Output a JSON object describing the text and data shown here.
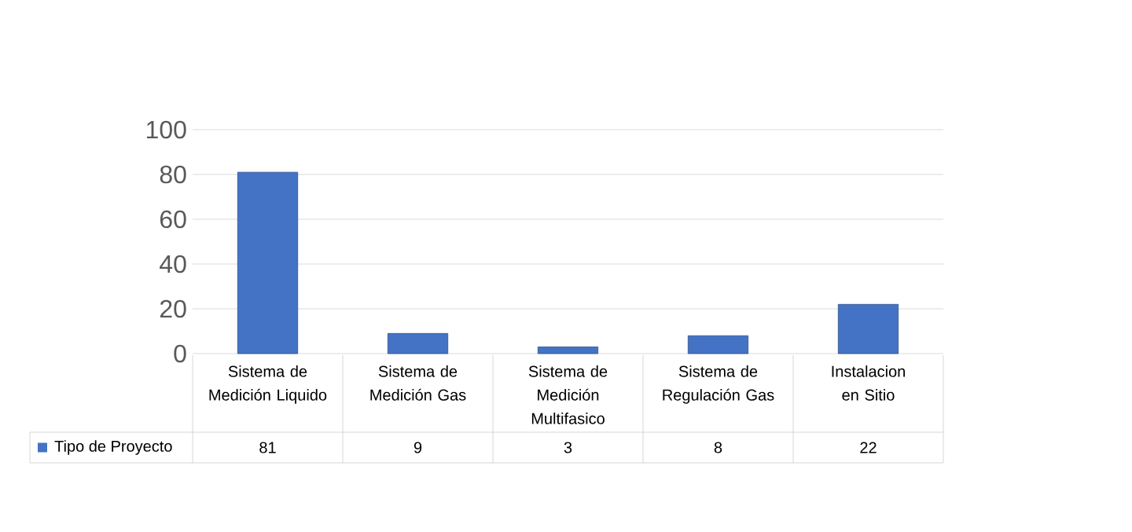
{
  "chart_data": {
    "type": "bar",
    "categories": [
      "Sistema de Medición Liquido",
      "Sistema de Medición Gas",
      "Sistema de Medición Multifasico",
      "Sistema de Regulación Gas",
      "Instalacion en Sitio"
    ],
    "series": [
      {
        "name": "Tipo de Proyecto",
        "color": "#4472c4",
        "values": [
          81,
          9,
          3,
          8,
          22
        ]
      }
    ],
    "ylim": [
      0,
      100
    ],
    "yticks": [
      0,
      20,
      40,
      60,
      80,
      100
    ],
    "grid": "y",
    "legend": "bottom left",
    "data_labels": true
  }
}
